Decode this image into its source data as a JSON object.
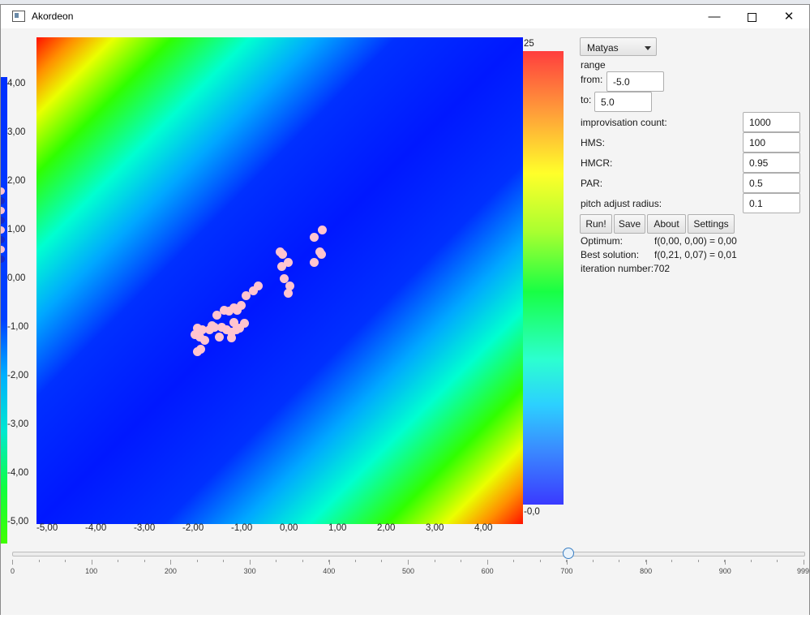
{
  "window": {
    "title": "Akordeon",
    "icon": "app-window-icon",
    "controls": [
      "minimize-icon",
      "maximize-icon",
      "close-icon"
    ]
  },
  "plot": {
    "y_ticks": [
      "4,00",
      "3,00",
      "2,00",
      "1,00",
      "0,00",
      "-1,00",
      "-2,00",
      "-3,00",
      "-4,00",
      "-5,00"
    ],
    "x_ticks": [
      "-5,00",
      "-4,00",
      "-3,00",
      "-2,00",
      "-1,00",
      "0,00",
      "1,00",
      "2,00",
      "3,00",
      "4,00"
    ],
    "colorbar_max": "25",
    "colorbar_min": "-0,0",
    "points": [
      [
        0.87,
        1.05
      ],
      [
        0.7,
        0.9
      ],
      [
        0.83,
        0.6
      ],
      [
        0.86,
        0.55
      ],
      [
        0.71,
        0.38
      ],
      [
        0.0,
        0.6
      ],
      [
        0.05,
        0.55
      ],
      [
        0.18,
        0.38
      ],
      [
        0.04,
        0.3
      ],
      [
        0.09,
        0.05
      ],
      [
        0.2,
        -0.1
      ],
      [
        0.18,
        -0.25
      ],
      [
        -0.45,
        -0.1
      ],
      [
        -0.55,
        -0.2
      ],
      [
        -0.69,
        -0.3
      ],
      [
        -0.8,
        -0.5
      ],
      [
        -0.88,
        -0.6
      ],
      [
        -0.95,
        -0.55
      ],
      [
        -1.05,
        -0.62
      ],
      [
        -1.15,
        -0.6
      ],
      [
        -1.3,
        -0.7
      ],
      [
        -0.72,
        -0.88
      ],
      [
        -0.82,
        -0.98
      ],
      [
        -0.9,
        -1.0
      ],
      [
        -1.0,
        -1.05
      ],
      [
        -1.1,
        -1.0
      ],
      [
        -1.2,
        -0.95
      ],
      [
        -1.35,
        -0.95
      ],
      [
        -1.45,
        -1.0
      ],
      [
        -1.6,
        -1.0
      ],
      [
        -1.7,
        -0.98
      ],
      [
        -1.75,
        -1.1
      ],
      [
        -1.65,
        -1.15
      ],
      [
        -1.55,
        -1.22
      ],
      [
        -1.25,
        -1.15
      ],
      [
        -1.0,
        -1.18
      ],
      [
        -1.62,
        -1.4
      ],
      [
        -1.7,
        -1.45
      ],
      [
        -1.4,
        -0.93
      ],
      [
        -0.95,
        -0.85
      ]
    ]
  },
  "left_strip": {
    "dot_colors": [
      "#ffc4cf",
      "#1828c8",
      "#ffc4cf",
      "#1828c8",
      "#ffc4cf",
      "#1828c8",
      "#ffc4cf",
      "#1828c8"
    ]
  },
  "controls": {
    "function_select": "Matyas",
    "range_label": "range",
    "from_label": "from:",
    "from_value": "-5.0",
    "to_label": "to:",
    "to_value": "5.0",
    "params": [
      {
        "label": "improvisation count:",
        "value": "1000"
      },
      {
        "label": "HMS:",
        "value": "100"
      },
      {
        "label": "HMCR:",
        "value": "0.95"
      },
      {
        "label": "PAR:",
        "value": "0.5"
      },
      {
        "label": "pitch adjust radius:",
        "value": "0.1"
      }
    ],
    "buttons": {
      "run": "Run!",
      "save": "Save",
      "about": "About",
      "settings": "Settings"
    }
  },
  "results": {
    "optimum_label": "Optimum:",
    "optimum_value": "f(0,00, 0,00) = 0,00",
    "best_label": "Best solution:",
    "best_value": "f(0,21, 0,07) = 0,01",
    "iteration_label": "iteration number:",
    "iteration_value": "702"
  },
  "slider": {
    "value": 702,
    "min": 0,
    "max": 999,
    "labels": [
      "0",
      "100",
      "200",
      "300",
      "400",
      "500",
      "600",
      "700",
      "800",
      "900",
      "999"
    ]
  }
}
